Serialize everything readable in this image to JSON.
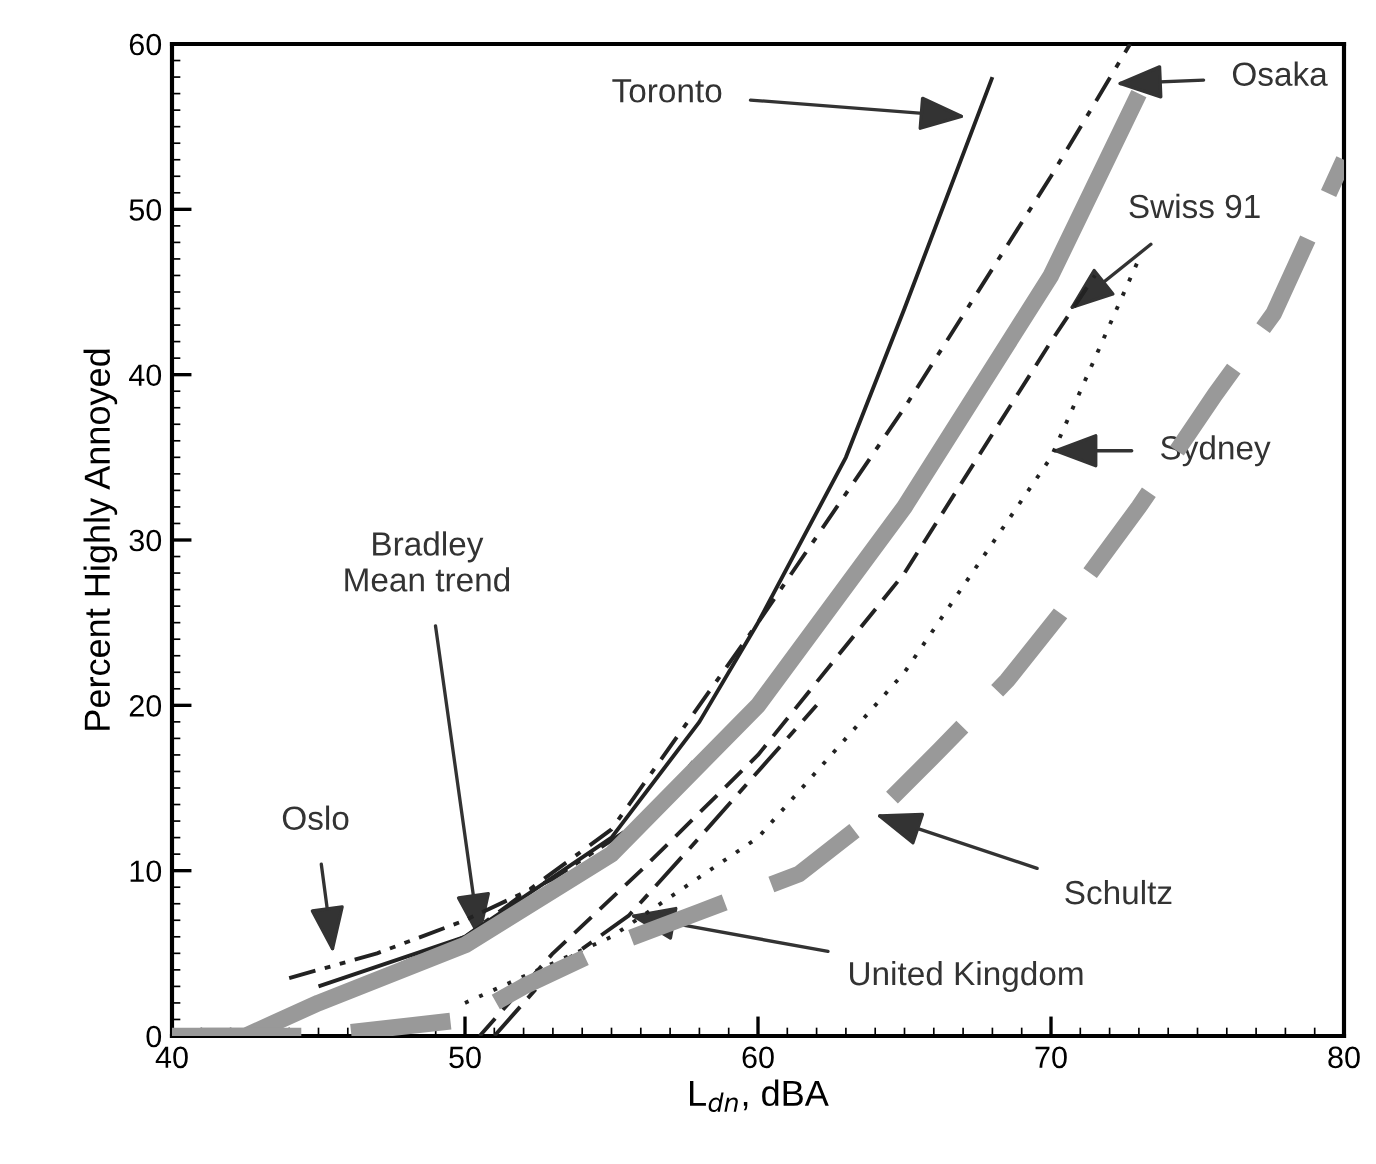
{
  "chart_data": {
    "type": "line",
    "xlabel": "L$_{dn}$, dBA",
    "ylabel": "Percent Highly Annoyed",
    "xlim": [
      40,
      80
    ],
    "ylim": [
      0,
      60
    ],
    "xticks": [
      40,
      50,
      60,
      70,
      80
    ],
    "yticks": [
      0,
      10,
      20,
      30,
      40,
      50,
      60
    ],
    "grid": false,
    "legend": false,
    "marker": "none",
    "series": [
      {
        "color": "#222222",
        "line_style": "solid",
        "x": [
          45,
          50,
          55,
          58,
          60,
          63,
          65,
          68
        ],
        "values": [
          3,
          6,
          12,
          19,
          25,
          35,
          44,
          58
        ]
      },
      {
        "color": "#222222",
        "line_style": "dashdot",
        "x": [
          46,
          50,
          55,
          60,
          65,
          70,
          72.7
        ],
        "values": [
          3,
          6,
          12.5,
          25,
          38,
          52,
          60
        ]
      },
      {
        "color": "#222222",
        "line_style": "dashdotdot",
        "x": [
          44,
          47,
          50,
          53,
          56,
          58
        ],
        "values": [
          3.5,
          5,
          7,
          9.5,
          13,
          17
        ]
      },
      {
        "color": "#999999",
        "line_style": "solid",
        "x": [
          40,
          42.5,
          45,
          50,
          55,
          60,
          65,
          70,
          73
        ],
        "values": [
          0,
          0,
          2,
          5.5,
          11,
          20,
          32,
          46,
          57
        ]
      },
      {
        "color": "#222222",
        "line_style": "dashed",
        "x": [
          50.5,
          53,
          56,
          60,
          65,
          70,
          71.5
        ],
        "values": [
          0,
          5,
          10,
          17,
          28,
          42,
          46
        ]
      },
      {
        "color": "#222222",
        "line_style": "dotted",
        "x": [
          50,
          55,
          60,
          65,
          70,
          73
        ],
        "values": [
          2,
          6,
          12,
          22,
          35,
          47
        ]
      },
      {
        "color": "#222222",
        "line_style": "longdash",
        "x": [
          51,
          53,
          55.6,
          58,
          60,
          62
        ],
        "values": [
          0,
          4,
          7.3,
          12,
          16,
          20
        ]
      },
      {
        "color": "#999999",
        "line_style": "dashed",
        "x": [
          41,
          45,
          50,
          52,
          55,
          58,
          61.4,
          64,
          66.2,
          68.5,
          70.3,
          73,
          75.6,
          77.6,
          80
        ],
        "values": [
          0,
          0,
          1,
          3,
          5.5,
          7.5,
          9.8,
          13.4,
          17.3,
          21.5,
          25.5,
          32,
          38.8,
          43.7,
          53
        ]
      }
    ],
    "annotations": [
      {
        "text": "Toronto",
        "x": 67.1,
        "y": 55.6
      },
      {
        "text": "Osaka",
        "x": 72.2,
        "y": 57.6
      },
      {
        "text": "Oslo",
        "x": 45.5,
        "y": 5
      },
      {
        "text": "Bradley\nMean trend",
        "x": 50.5,
        "y": 5.8
      },
      {
        "text": "Swiss 91",
        "x": 70.6,
        "y": 43.9
      },
      {
        "text": "Sydney",
        "x": 70,
        "y": 35.4
      },
      {
        "text": "United Kingdom",
        "x": 55.6,
        "y": 7.3
      },
      {
        "text": "Schultz",
        "x": 64,
        "y": 13.4
      }
    ]
  }
}
